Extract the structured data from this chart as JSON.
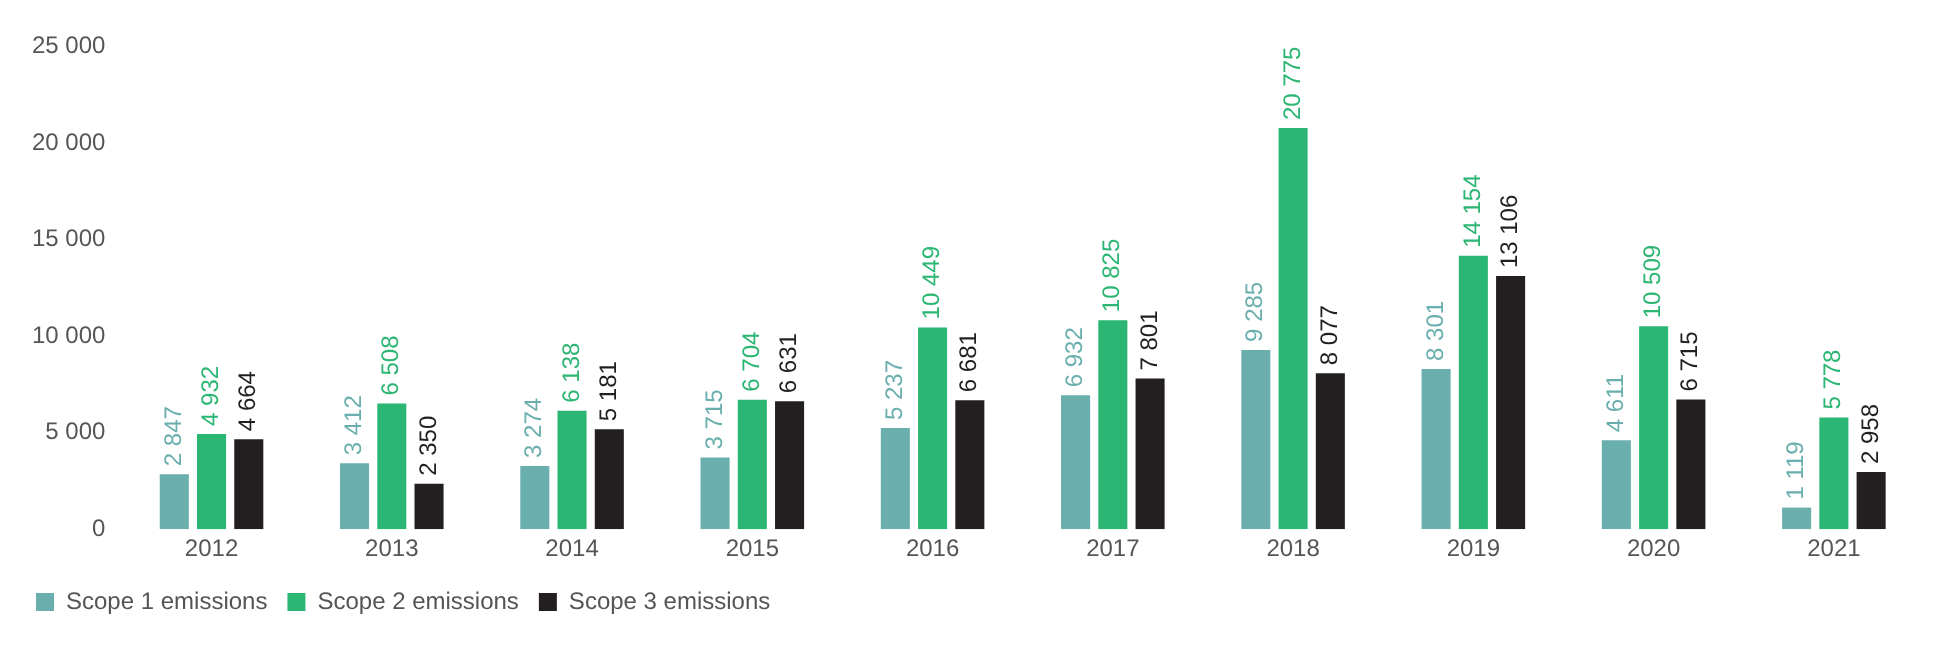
{
  "chart_data": {
    "type": "bar",
    "categories": [
      "2012",
      "2013",
      "2014",
      "2015",
      "2016",
      "2017",
      "2018",
      "2019",
      "2020",
      "2021"
    ],
    "series": [
      {
        "name": "Scope 1 emissions",
        "color": "#6aafad",
        "values": [
          2847,
          3412,
          3274,
          3715,
          5237,
          6932,
          9285,
          8301,
          4611,
          1119
        ],
        "value_labels": [
          "2 847",
          "3 412",
          "3 274",
          "3 715",
          "5 237",
          "6 932",
          "9 285",
          "8 301",
          "4 611",
          "1 119"
        ]
      },
      {
        "name": "Scope 2 emissions",
        "color": "#2bb673",
        "values": [
          4932,
          6508,
          6138,
          6704,
          10449,
          10825,
          20775,
          14154,
          10509,
          5778
        ],
        "value_labels": [
          "4 932",
          "6 508",
          "6 138",
          "6 704",
          "10 449",
          "10 825",
          "20 775",
          "14 154",
          "10 509",
          "5 778"
        ]
      },
      {
        "name": "Scope 3 emissions",
        "color": "#231f20",
        "values": [
          4664,
          2350,
          5181,
          6631,
          6681,
          7801,
          8077,
          13106,
          6715,
          2958
        ],
        "value_labels": [
          "4 664",
          "2 350",
          "5 181",
          "6 631",
          "6 681",
          "7 801",
          "8 077",
          "13 106",
          "6 715",
          "2 958"
        ]
      }
    ],
    "ylim": [
      0,
      25000
    ],
    "yticks": [
      {
        "value": 0,
        "label": "0"
      },
      {
        "value": 5000,
        "label": "5 000"
      },
      {
        "value": 10000,
        "label": "10 000"
      },
      {
        "value": 15000,
        "label": "15 000"
      },
      {
        "value": 20000,
        "label": "20 000"
      },
      {
        "value": 25000,
        "label": "25 000"
      }
    ],
    "grid": false,
    "legend": "bottom left"
  }
}
